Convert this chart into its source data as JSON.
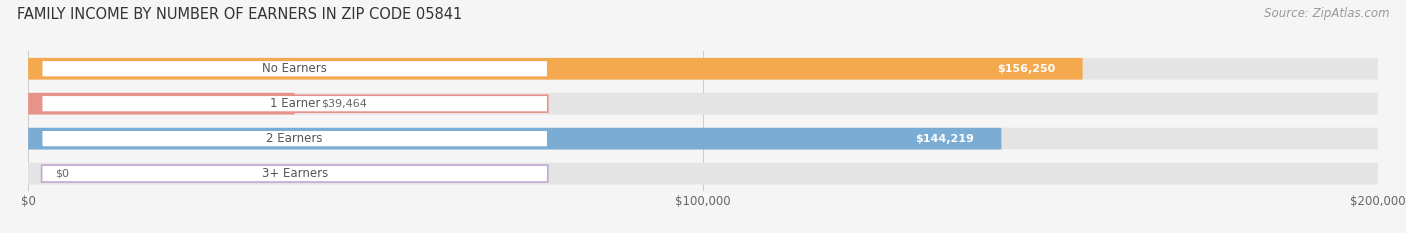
{
  "title": "FAMILY INCOME BY NUMBER OF EARNERS IN ZIP CODE 05841",
  "source": "Source: ZipAtlas.com",
  "categories": [
    "No Earners",
    "1 Earner",
    "2 Earners",
    "3+ Earners"
  ],
  "values": [
    156250,
    39464,
    144219,
    0
  ],
  "bar_colors": [
    "#F5A94E",
    "#E8938A",
    "#7BACD4",
    "#C4A8D4"
  ],
  "value_labels": [
    "$156,250",
    "$39,464",
    "$144,219",
    "$0"
  ],
  "value_label_inside": [
    true,
    false,
    true,
    false
  ],
  "xlim": [
    0,
    200000
  ],
  "xticks": [
    0,
    100000,
    200000
  ],
  "xtick_labels": [
    "$0",
    "$100,000",
    "$200,000"
  ],
  "bar_height": 0.62,
  "background_color": "#f5f5f5",
  "bar_bg_color": "#e4e4e4",
  "title_fontsize": 10.5,
  "source_fontsize": 8.5,
  "tick_fontsize": 8.5,
  "label_fontsize": 8.5,
  "value_fontsize": 8.0,
  "pill_text_color": "#555555",
  "pill_border_color_alpha": 0.0
}
